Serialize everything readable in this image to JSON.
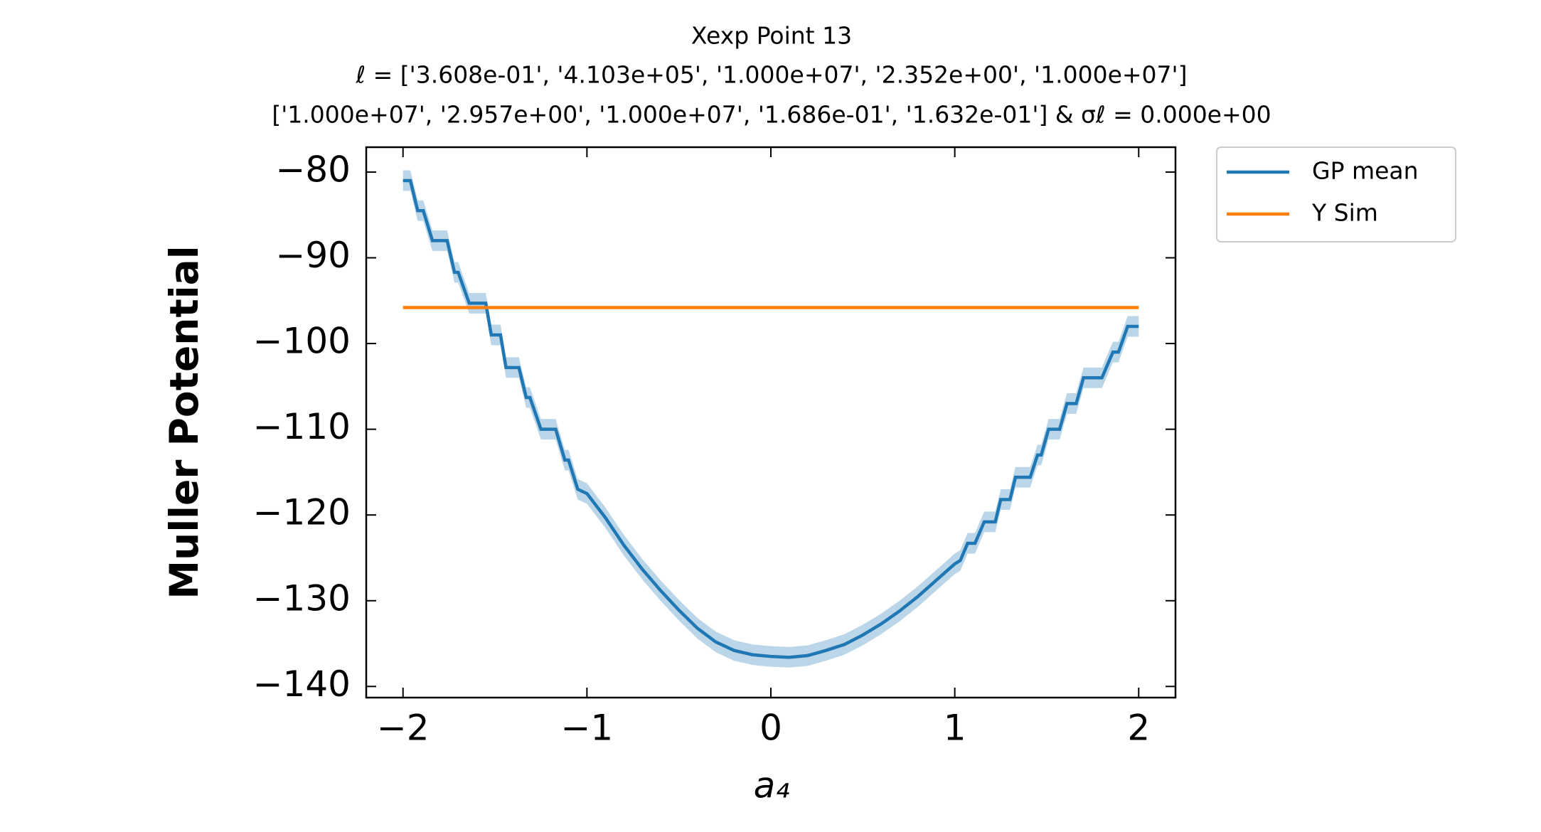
{
  "chart_data": {
    "type": "line",
    "title": [
      "Xexp Point 13",
      "ℓ = ['3.608e-01', '4.103e+05', '1.000e+07', '2.352e+00', '1.000e+07']",
      "['1.000e+07', '2.957e+00', '1.000e+07', '1.686e-01', '1.632e-01'] & σℓ = 0.000e+00"
    ],
    "xlabel": "a₄",
    "ylabel": "Muller Potential",
    "xlim": [
      -2.2,
      2.2
    ],
    "ylim": [
      -141.3,
      -77.1
    ],
    "xticks": [
      {
        "value": -2,
        "label": "−2"
      },
      {
        "value": -1,
        "label": "−1"
      },
      0,
      1,
      2
    ],
    "yticks": [
      {
        "value": -80,
        "label": "−80"
      },
      {
        "value": -90,
        "label": "−90"
      },
      {
        "value": -100,
        "label": "−100"
      },
      {
        "value": -110,
        "label": "−110"
      },
      {
        "value": -120,
        "label": "−120"
      },
      {
        "value": -130,
        "label": "−130"
      },
      {
        "value": -140,
        "label": "−140"
      }
    ],
    "legend": "outside-upper-right",
    "series": [
      {
        "name": "GP mean",
        "color": "#1f77b4",
        "band": 1.2,
        "x": [
          -2,
          -1.96,
          -1.92,
          -1.89,
          -1.84,
          -1.76,
          -1.72,
          -1.7,
          -1.64,
          -1.55,
          -1.52,
          -1.47,
          -1.44,
          -1.37,
          -1.33,
          -1.31,
          -1.25,
          -1.17,
          -1.12,
          -1.1,
          -1.05,
          -1.0,
          -0.9,
          -0.8,
          -0.7,
          -0.6,
          -0.5,
          -0.4,
          -0.3,
          -0.2,
          -0.1,
          0,
          0.1,
          0.2,
          0.3,
          0.4,
          0.5,
          0.6,
          0.7,
          0.8,
          0.9,
          1.0,
          1.03,
          1.07,
          1.11,
          1.16,
          1.22,
          1.25,
          1.3,
          1.33,
          1.41,
          1.45,
          1.47,
          1.51,
          1.57,
          1.61,
          1.66,
          1.7,
          1.8,
          1.86,
          1.89,
          1.94,
          2
        ],
        "values": [
          -81,
          -81,
          -84.5,
          -84.5,
          -88,
          -88,
          -91.7,
          -91.7,
          -95.3,
          -95.3,
          -99,
          -99,
          -102.8,
          -102.8,
          -106.3,
          -106.3,
          -110,
          -110,
          -113.6,
          -113.6,
          -117,
          -117.5,
          -120.3,
          -123.5,
          -126.3,
          -128.8,
          -131.1,
          -133.2,
          -134.8,
          -135.8,
          -136.3,
          -136.5,
          -136.6,
          -136.4,
          -135.8,
          -135.1,
          -134.0,
          -132.7,
          -131.2,
          -129.5,
          -127.6,
          -125.7,
          -125.3,
          -123.3,
          -123.3,
          -120.8,
          -120.8,
          -118.2,
          -118.2,
          -115.6,
          -115.6,
          -113,
          -113,
          -110,
          -110,
          -107,
          -107,
          -104,
          -104,
          -101,
          -101,
          -98,
          -98
        ]
      },
      {
        "name": "Y Sim",
        "color": "#ff7f0e",
        "x": [
          -2,
          2
        ],
        "values": [
          -95.8,
          -95.8
        ]
      }
    ]
  }
}
